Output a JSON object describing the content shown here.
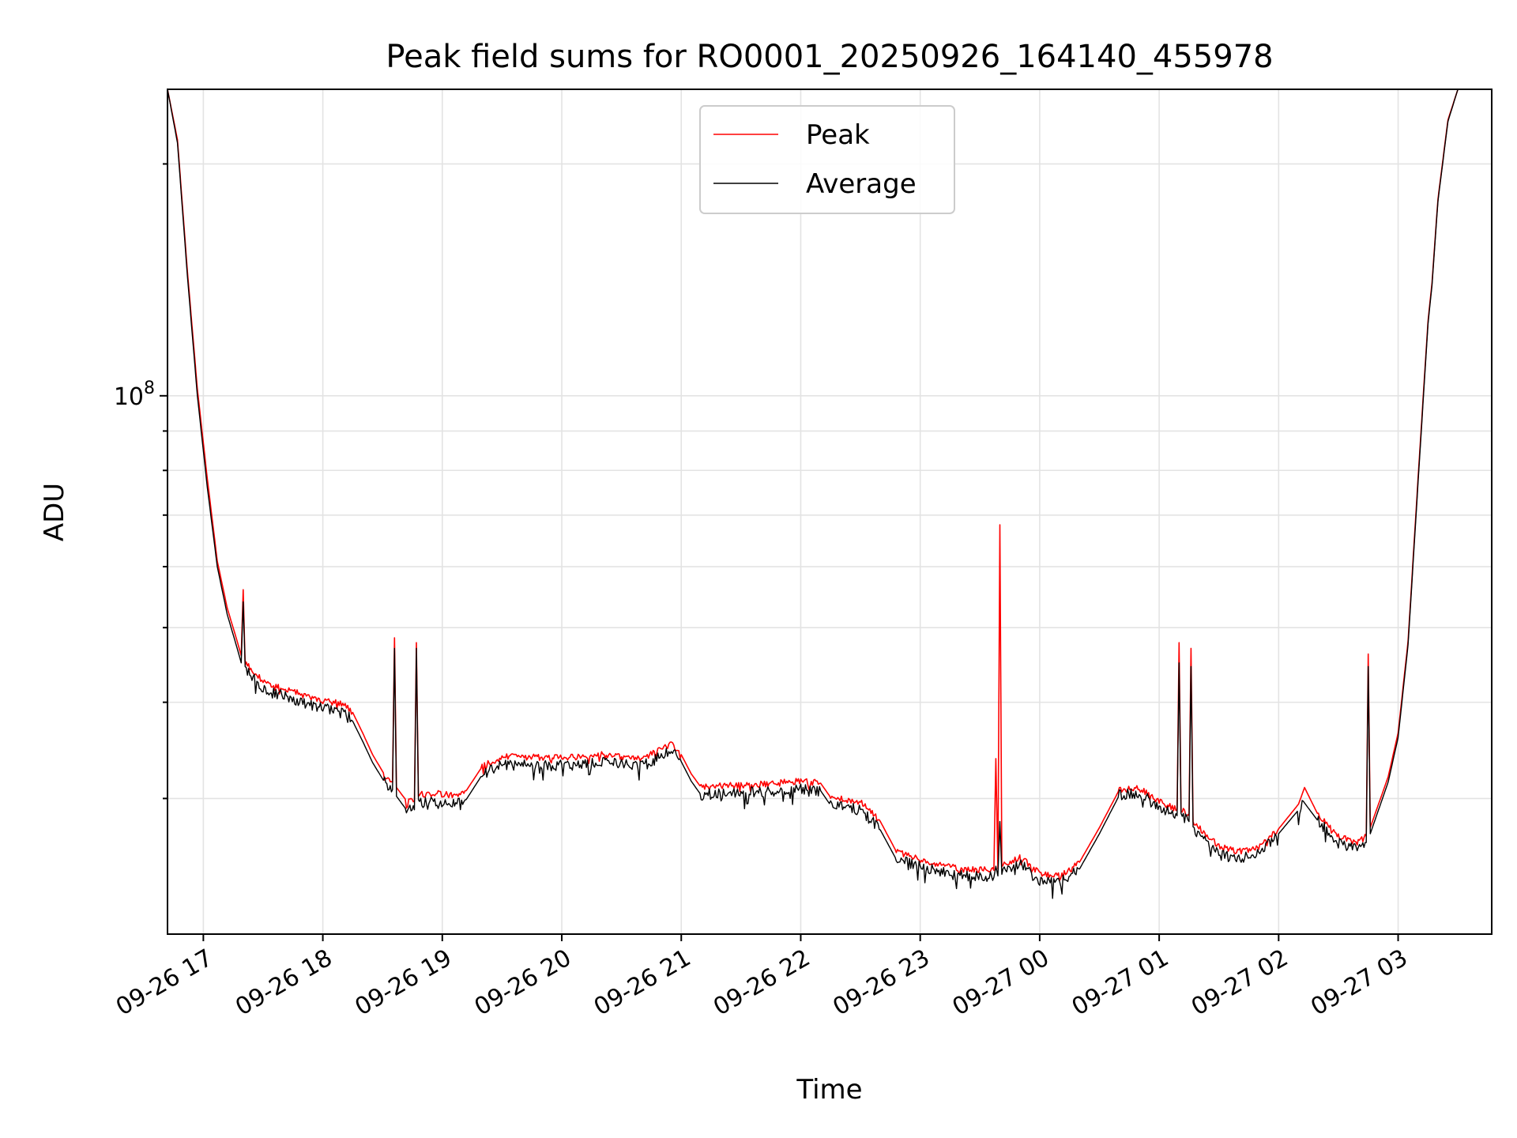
{
  "chart_data": {
    "type": "line",
    "title": "Peak field sums for RO0001_20250926_164140_455978",
    "xlabel": "Time",
    "ylabel": "ADU",
    "y_scale": "log",
    "ylim": [
      20000000,
      250000000
    ],
    "xlim": [
      "2025-09-26T16:42",
      "2025-09-27T03:47"
    ],
    "x_ticks": [
      {
        "t": "2025-09-26T17:00",
        "label": "09-26 17"
      },
      {
        "t": "2025-09-26T18:00",
        "label": "09-26 18"
      },
      {
        "t": "2025-09-26T19:00",
        "label": "09-26 19"
      },
      {
        "t": "2025-09-26T20:00",
        "label": "09-26 20"
      },
      {
        "t": "2025-09-26T21:00",
        "label": "09-26 21"
      },
      {
        "t": "2025-09-26T22:00",
        "label": "09-26 22"
      },
      {
        "t": "2025-09-26T23:00",
        "label": "09-26 23"
      },
      {
        "t": "2025-09-27T00:00",
        "label": "09-27 00"
      },
      {
        "t": "2025-09-27T01:00",
        "label": "09-27 01"
      },
      {
        "t": "2025-09-27T02:00",
        "label": "09-27 02"
      },
      {
        "t": "2025-09-27T03:00",
        "label": "09-27 03"
      }
    ],
    "y_tick_major": {
      "value": 100000000,
      "label_base": "10",
      "label_exp": "8"
    },
    "y_minor_ticks": [
      30000000,
      40000000,
      50000000,
      60000000,
      70000000,
      80000000,
      90000000,
      200000000
    ],
    "grid": true,
    "legend_position": "top-center",
    "series": [
      {
        "name": "Peak",
        "color": "#ff0000",
        "points": [
          [
            "2025-09-26T16:42",
            250000000
          ],
          [
            "2025-09-26T16:47",
            215000000
          ],
          [
            "2025-09-26T16:52",
            145000000
          ],
          [
            "2025-09-26T16:57",
            102000000
          ],
          [
            "2025-09-26T17:02",
            78000000
          ],
          [
            "2025-09-26T17:07",
            61000000
          ],
          [
            "2025-09-26T17:12",
            53000000
          ],
          [
            "2025-09-26T17:17",
            48000000
          ],
          [
            "2025-09-26T17:19",
            46000000
          ],
          [
            "2025-09-26T17:20",
            56000000
          ],
          [
            "2025-09-26T17:21",
            45000000
          ],
          [
            "2025-09-26T17:25",
            44000000
          ],
          [
            "2025-09-26T17:30",
            42500000
          ],
          [
            "2025-09-26T17:40",
            41800000
          ],
          [
            "2025-09-26T17:50",
            41000000
          ],
          [
            "2025-09-26T18:00",
            40200000
          ],
          [
            "2025-09-26T18:10",
            39800000
          ],
          [
            "2025-09-26T18:15",
            38800000
          ],
          [
            "2025-09-26T18:20",
            36500000
          ],
          [
            "2025-09-26T18:25",
            34200000
          ],
          [
            "2025-09-26T18:31",
            32200000
          ],
          [
            "2025-09-26T18:35",
            31500000
          ],
          [
            "2025-09-26T18:36",
            48500000
          ],
          [
            "2025-09-26T18:37",
            31000000
          ],
          [
            "2025-09-26T18:42",
            29800000
          ],
          [
            "2025-09-26T18:46",
            29800000
          ],
          [
            "2025-09-26T18:47",
            47800000
          ],
          [
            "2025-09-26T18:48",
            30300000
          ],
          [
            "2025-09-26T18:55",
            30500000
          ],
          [
            "2025-09-26T19:05",
            30300000
          ],
          [
            "2025-09-26T19:12",
            30700000
          ],
          [
            "2025-09-26T19:20",
            33000000
          ],
          [
            "2025-09-26T19:30",
            34000000
          ],
          [
            "2025-09-26T19:50",
            33900000
          ],
          [
            "2025-09-26T20:10",
            34000000
          ],
          [
            "2025-09-26T20:20",
            34200000
          ],
          [
            "2025-09-26T20:40",
            33800000
          ],
          [
            "2025-09-26T20:50",
            34800000
          ],
          [
            "2025-09-26T20:55",
            35300000
          ],
          [
            "2025-09-26T21:00",
            34200000
          ],
          [
            "2025-09-26T21:05",
            32300000
          ],
          [
            "2025-09-26T21:10",
            31000000
          ],
          [
            "2025-09-26T21:20",
            31200000
          ],
          [
            "2025-09-26T21:40",
            31300000
          ],
          [
            "2025-09-26T22:00",
            31600000
          ],
          [
            "2025-09-26T22:10",
            31400000
          ],
          [
            "2025-09-26T22:15",
            30100000
          ],
          [
            "2025-09-26T22:30",
            29700000
          ],
          [
            "2025-09-26T22:40",
            28000000
          ],
          [
            "2025-09-26T22:48",
            25600000
          ],
          [
            "2025-09-26T23:00",
            25000000
          ],
          [
            "2025-09-26T23:20",
            24300000
          ],
          [
            "2025-09-26T23:37",
            24200000
          ],
          [
            "2025-09-26T23:38",
            33800000
          ],
          [
            "2025-09-26T23:39",
            24300000
          ],
          [
            "2025-09-26T23:40",
            68000000
          ],
          [
            "2025-09-26T23:41",
            24500000
          ],
          [
            "2025-09-26T23:50",
            25200000
          ],
          [
            "2025-09-27T00:00",
            24000000
          ],
          [
            "2025-09-27T00:10",
            23800000
          ],
          [
            "2025-09-27T00:20",
            24800000
          ],
          [
            "2025-09-27T00:30",
            27500000
          ],
          [
            "2025-09-27T00:40",
            30800000
          ],
          [
            "2025-09-27T00:50",
            31000000
          ],
          [
            "2025-09-27T01:00",
            29700000
          ],
          [
            "2025-09-27T01:09",
            29000000
          ],
          [
            "2025-09-27T01:10",
            47800000
          ],
          [
            "2025-09-27T01:11",
            29000000
          ],
          [
            "2025-09-27T01:15",
            28500000
          ],
          [
            "2025-09-27T01:16",
            47000000
          ],
          [
            "2025-09-27T01:17",
            28000000
          ],
          [
            "2025-09-27T01:30",
            26000000
          ],
          [
            "2025-09-27T01:40",
            25600000
          ],
          [
            "2025-09-27T01:50",
            25900000
          ],
          [
            "2025-09-27T02:00",
            27400000
          ],
          [
            "2025-09-27T02:10",
            29500000
          ],
          [
            "2025-09-27T02:13",
            31000000
          ],
          [
            "2025-09-27T02:20",
            28500000
          ],
          [
            "2025-09-27T02:30",
            26800000
          ],
          [
            "2025-09-27T02:40",
            26300000
          ],
          [
            "2025-09-27T02:44",
            26800000
          ],
          [
            "2025-09-27T02:45",
            46200000
          ],
          [
            "2025-09-27T02:46",
            27500000
          ],
          [
            "2025-09-27T02:55",
            32000000
          ],
          [
            "2025-09-27T03:00",
            36500000
          ],
          [
            "2025-09-27T03:05",
            48000000
          ],
          [
            "2025-09-27T03:10",
            78000000
          ],
          [
            "2025-09-27T03:15",
            125000000
          ],
          [
            "2025-09-27T03:17",
            140000000
          ],
          [
            "2025-09-27T03:20",
            180000000
          ],
          [
            "2025-09-27T03:25",
            228000000
          ],
          [
            "2025-09-27T03:30",
            250000000
          ],
          [
            "2025-09-27T03:47",
            250000000
          ]
        ]
      },
      {
        "name": "Average",
        "color": "#000000",
        "points": [
          [
            "2025-09-26T16:42",
            250000000
          ],
          [
            "2025-09-26T16:47",
            213000000
          ],
          [
            "2025-09-26T16:52",
            143000000
          ],
          [
            "2025-09-26T16:57",
            100000000
          ],
          [
            "2025-09-26T17:02",
            76000000
          ],
          [
            "2025-09-26T17:07",
            60000000
          ],
          [
            "2025-09-26T17:12",
            52000000
          ],
          [
            "2025-09-26T17:17",
            47000000
          ],
          [
            "2025-09-26T17:19",
            45000000
          ],
          [
            "2025-09-26T17:20",
            54000000
          ],
          [
            "2025-09-26T17:21",
            44000000
          ],
          [
            "2025-09-26T17:25",
            43000000
          ],
          [
            "2025-09-26T17:30",
            41500000
          ],
          [
            "2025-09-26T17:40",
            40800000
          ],
          [
            "2025-09-26T17:50",
            40000000
          ],
          [
            "2025-09-26T18:00",
            39300000
          ],
          [
            "2025-09-26T18:10",
            38900000
          ],
          [
            "2025-09-26T18:15",
            37800000
          ],
          [
            "2025-09-26T18:20",
            35600000
          ],
          [
            "2025-09-26T18:25",
            33400000
          ],
          [
            "2025-09-26T18:31",
            31500000
          ],
          [
            "2025-09-26T18:35",
            30800000
          ],
          [
            "2025-09-26T18:36",
            47000000
          ],
          [
            "2025-09-26T18:37",
            30200000
          ],
          [
            "2025-09-26T18:42",
            29000000
          ],
          [
            "2025-09-26T18:46",
            29000000
          ],
          [
            "2025-09-26T18:47",
            47000000
          ],
          [
            "2025-09-26T18:48",
            29500000
          ],
          [
            "2025-09-26T18:55",
            29700000
          ],
          [
            "2025-09-26T19:05",
            29500000
          ],
          [
            "2025-09-26T19:12",
            29900000
          ],
          [
            "2025-09-26T19:20",
            32200000
          ],
          [
            "2025-09-26T19:30",
            33200000
          ],
          [
            "2025-09-26T19:50",
            33100000
          ],
          [
            "2025-09-26T20:10",
            33200000
          ],
          [
            "2025-09-26T20:20",
            33400000
          ],
          [
            "2025-09-26T20:40",
            33000000
          ],
          [
            "2025-09-26T20:50",
            34000000
          ],
          [
            "2025-09-26T20:55",
            34600000
          ],
          [
            "2025-09-26T21:00",
            33500000
          ],
          [
            "2025-09-26T21:05",
            31600000
          ],
          [
            "2025-09-26T21:10",
            30300000
          ],
          [
            "2025-09-26T21:20",
            30500000
          ],
          [
            "2025-09-26T21:40",
            30600000
          ],
          [
            "2025-09-26T22:00",
            30900000
          ],
          [
            "2025-09-26T22:10",
            30700000
          ],
          [
            "2025-09-26T22:15",
            29400000
          ],
          [
            "2025-09-26T22:30",
            29000000
          ],
          [
            "2025-09-26T22:40",
            27300000
          ],
          [
            "2025-09-26T22:48",
            25000000
          ],
          [
            "2025-09-26T23:00",
            24500000
          ],
          [
            "2025-09-26T23:20",
            23800000
          ],
          [
            "2025-09-26T23:37",
            23700000
          ],
          [
            "2025-09-26T23:38",
            24500000
          ],
          [
            "2025-09-26T23:39",
            23800000
          ],
          [
            "2025-09-26T23:40",
            28000000
          ],
          [
            "2025-09-26T23:41",
            24000000
          ],
          [
            "2025-09-26T23:50",
            24700000
          ],
          [
            "2025-09-27T00:00",
            23500000
          ],
          [
            "2025-09-27T00:10",
            23300000
          ],
          [
            "2025-09-27T00:20",
            24300000
          ],
          [
            "2025-09-27T00:30",
            27000000
          ],
          [
            "2025-09-27T00:40",
            30300000
          ],
          [
            "2025-09-27T00:50",
            30500000
          ],
          [
            "2025-09-27T01:00",
            29200000
          ],
          [
            "2025-09-27T01:09",
            28500000
          ],
          [
            "2025-09-27T01:10",
            45000000
          ],
          [
            "2025-09-27T01:11",
            28500000
          ],
          [
            "2025-09-27T01:15",
            28000000
          ],
          [
            "2025-09-27T01:16",
            44500000
          ],
          [
            "2025-09-27T01:17",
            27500000
          ],
          [
            "2025-09-27T01:30",
            25400000
          ],
          [
            "2025-09-27T01:40",
            25000000
          ],
          [
            "2025-09-27T01:50",
            25400000
          ],
          [
            "2025-09-27T02:00",
            27000000
          ],
          [
            "2025-09-27T02:10",
            29000000
          ],
          [
            "2025-09-27T02:13",
            29600000
          ],
          [
            "2025-09-27T02:20",
            28000000
          ],
          [
            "2025-09-27T02:30",
            26300000
          ],
          [
            "2025-09-27T02:40",
            25800000
          ],
          [
            "2025-09-27T02:44",
            26300000
          ],
          [
            "2025-09-27T02:45",
            44500000
          ],
          [
            "2025-09-27T02:46",
            27000000
          ],
          [
            "2025-09-27T02:55",
            31500000
          ],
          [
            "2025-09-27T03:00",
            36000000
          ],
          [
            "2025-09-27T03:05",
            47500000
          ],
          [
            "2025-09-27T03:10",
            77000000
          ],
          [
            "2025-09-27T03:15",
            124000000
          ],
          [
            "2025-09-27T03:17",
            139000000
          ],
          [
            "2025-09-27T03:20",
            179000000
          ],
          [
            "2025-09-27T03:25",
            227000000
          ],
          [
            "2025-09-27T03:30",
            250000000
          ],
          [
            "2025-09-27T03:47",
            250000000
          ]
        ]
      }
    ]
  }
}
